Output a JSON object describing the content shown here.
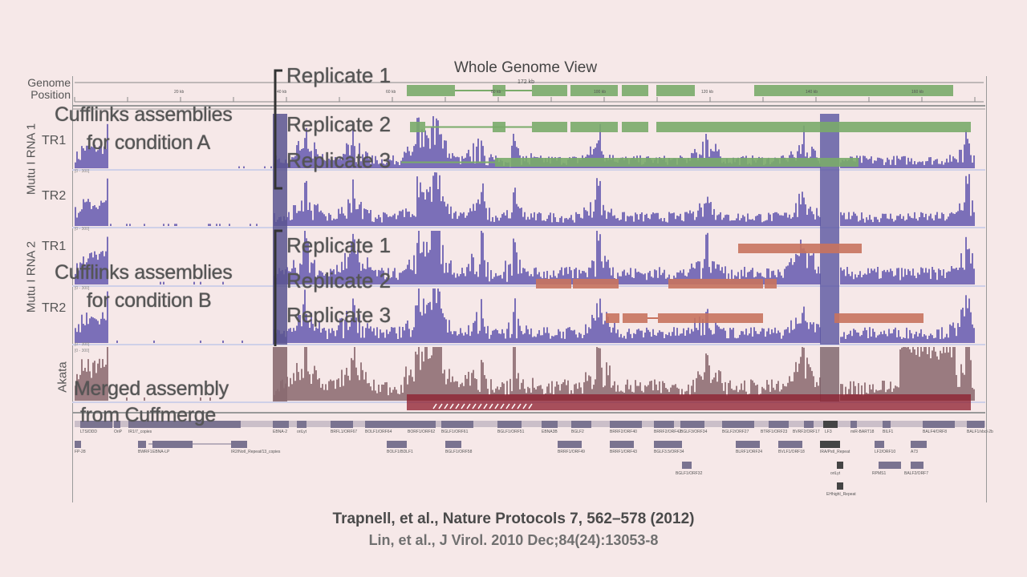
{
  "title": "Whole Genome View",
  "genome_position_label": "Genome Position",
  "ruler": {
    "total": "172 kb",
    "ticks": [
      "20 kb",
      "40 kb",
      "60 kb",
      "80 kb",
      "100 kb",
      "120 kb",
      "140 kb",
      "160 kb"
    ]
  },
  "groups": [
    {
      "label": "Mutu I RNA 1",
      "tracks": [
        "TR1",
        "TR2"
      ]
    },
    {
      "label": "Mutu I RNA 2",
      "tracks": [
        "TR1",
        "TR2"
      ]
    },
    {
      "label": "Akata",
      "tracks": []
    }
  ],
  "scale_label": "[0 - 300]",
  "overlays": {
    "condition_a": [
      "Cufflinks assemblies",
      "for condition A"
    ],
    "condition_b": [
      "Cufflinks assemblies",
      "for condition B"
    ],
    "merged": [
      "Merged assembly",
      "from Cuffmerge"
    ],
    "replicates": [
      "Replicate 1",
      "Replicate 2",
      "Replicate 3"
    ]
  },
  "colors": {
    "background": "#f6e8e8",
    "coverage_mutu": "#7b6fb8",
    "coverage_akata": "#9a7b80",
    "condition_a": "#7aab6a",
    "condition_b": "#c8735e",
    "merged": "#8c1c2c",
    "genes": "#7a7390"
  },
  "genes": {
    "row1": [
      "LTS/DDD",
      "OriP",
      "IR1/7_copies",
      "EBNA-2",
      "oriLyt",
      "BRFL1/ORF67",
      "BOLF1/ORF64",
      "BORF1/ORF62",
      "BGLF1/ORF61",
      "BGLF1/ORF51",
      "EBNA3B",
      "BGLF2",
      "BRRF2/ORF40",
      "BRRF2/ORF42",
      "BGLF3/ORF34",
      "BGLF2/ORF27",
      "BTRF1/ORF23",
      "BVRF2/ORF17",
      "LF3",
      "miR-BART18",
      "BILF1",
      "BALF4/ORF8",
      "BALF1/vbcl-2b"
    ],
    "row2": [
      "FP-28",
      "BWRF1",
      "EBNA-LP",
      "IR2/NotI_Repeat/13_copies",
      "BOLF1/BDLF1",
      "BGLF1/ORF58",
      "BRRF1/ORF49",
      "BRRF1/ORF43",
      "BGLF3.5/ORF34",
      "BLRF1/ORF24",
      "BVLF1/ORF18",
      "IRA/PstI_Repeat",
      "LF2/ORF10",
      "A73"
    ],
    "row3": [
      "BGLF1/ORF32",
      "oriLyt",
      "RPMS1",
      "BALF2/ORF7"
    ],
    "row4": [
      "EHhighI_Repeat"
    ]
  },
  "citations": [
    "Trapnell, et al., Nature Protocols 7, 562–578 (2012)",
    "Lin, et al., J Virol. 2010 Dec;84(24):13053-8"
  ]
}
